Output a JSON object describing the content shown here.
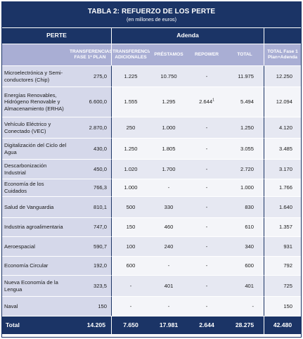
{
  "table": {
    "title": "TABLA 2: REFUERZO DE LOS PERTE",
    "subtitle": "(en millones de euros)",
    "group_headers": {
      "perte": "PERTE",
      "adenda": "Adenda"
    },
    "columns": [
      "TRANSFERENCIAS FASE 1ª PLAN",
      "TRANSFERENCIAS ADICIONALES",
      "PRÉSTAMOS",
      "REPOWER",
      "TOTAL",
      "TOTAL Fase 1 Plan+Adenda"
    ],
    "rows": [
      {
        "name": "Microelectrónica y Semi-conductores (Chip)",
        "tf": "275,0",
        "ta": "1.225",
        "pr": "10.750",
        "rp": "-",
        "tot": "11.975",
        "gt": "12.250"
      },
      {
        "name": "Energías Renovables, Hidrógeno Renovable y Almacenamiento (ERHA)",
        "tf": "6.600,0",
        "ta": "1.555",
        "pr": "1.295",
        "rp": "2.644",
        "rp_note": "1",
        "tot": "5.494",
        "gt": "12.094"
      },
      {
        "name": "Vehículo Eléctrico y Conectado (VEC)",
        "tf": "2.870,0",
        "ta": "250",
        "pr": "1.000",
        "rp": "-",
        "tot": "1.250",
        "gt": "4.120"
      },
      {
        "name": "Digitalización del Ciclo del Agua",
        "tf": "430,0",
        "ta": "1.250",
        "pr": "1.805",
        "rp": "-",
        "tot": "3.055",
        "gt": "3.485"
      },
      {
        "name": "Descarbonización Industrial",
        "tf": "450,0",
        "ta": "1.020",
        "pr": "1.700",
        "rp": "-",
        "tot": "2.720",
        "gt": "3.170"
      },
      {
        "name": "Economía de los Cuidados",
        "tf": "766,3",
        "ta": "1.000",
        "pr": "-",
        "rp": "-",
        "tot": "1.000",
        "gt": "1.766"
      },
      {
        "name": "Salud de Vanguardia",
        "tf": "810,1",
        "ta": "500",
        "pr": "330",
        "rp": "-",
        "tot": "830",
        "gt": "1.640"
      },
      {
        "name": "Industria agroalimentaria",
        "tf": "747,0",
        "ta": "150",
        "pr": "460",
        "rp": "-",
        "tot": "610",
        "gt": "1.357"
      },
      {
        "name": "Aeroespacial",
        "tf": "590,7",
        "ta": "100",
        "pr": "240",
        "rp": "-",
        "tot": "340",
        "gt": "931"
      },
      {
        "name": "Economía Circular",
        "tf": "192,0",
        "ta": "600",
        "pr": "-",
        "rp": "-",
        "tot": "600",
        "gt": "792"
      },
      {
        "name": "Nueva Economía de la Lengua",
        "tf": "323,5",
        "ta": "-",
        "pr": "401",
        "rp": "-",
        "tot": "401",
        "gt": "725"
      },
      {
        "name": "Naval",
        "tf": "150",
        "ta": "-",
        "pr": "-",
        "rp": "-",
        "tot": "-",
        "gt": "150"
      }
    ],
    "total": {
      "name": "Total",
      "tf": "14.205",
      "ta": "7.650",
      "pr": "17.981",
      "rp": "2.644",
      "tot": "28.275",
      "gt": "42.480"
    }
  },
  "colors": {
    "header_navy": "#1b3466",
    "subheader_lavender": "#a9aed4",
    "row_shade": "#d5d8ea"
  }
}
